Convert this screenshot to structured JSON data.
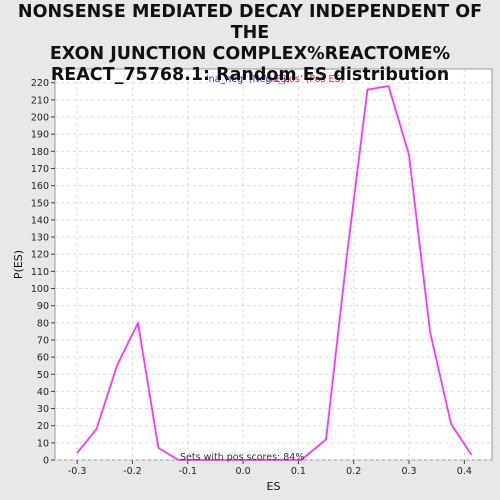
{
  "title": "NONSENSE MEDIATED DECAY INDEPENDENT OF THE EXON JUNCTION COMPLEX%REACTOME% REACT_75768.1: Random ES distribution",
  "chart_data": {
    "type": "line",
    "title": "NONSENSE MEDIATED DECAY INDEPENDENT OF THE EXON JUNCTION COMPLEX%REACTOME% REACT_75768.1: Random ES distribution",
    "xlabel": "ES",
    "ylabel": "P(ES)",
    "xlim": [
      -0.34,
      0.45
    ],
    "ylim": [
      0,
      228
    ],
    "x_ticks": [
      -0.3,
      -0.2,
      -0.1,
      0.0,
      0.1,
      0.2,
      0.3,
      0.4
    ],
    "x_tick_labels": [
      "-0.3",
      "-0.2",
      "-0.1",
      "0.0",
      "0.1",
      "0.2",
      "0.3",
      "0.4"
    ],
    "y_ticks": [
      0,
      10,
      20,
      30,
      40,
      50,
      60,
      70,
      80,
      90,
      100,
      110,
      120,
      130,
      140,
      150,
      160,
      170,
      180,
      190,
      200,
      210,
      220
    ],
    "y_tick_labels": [
      "0",
      "10",
      "20",
      "30",
      "40",
      "50",
      "60",
      "70",
      "80",
      "90",
      "100",
      "110",
      "120",
      "130",
      "140",
      "150",
      "160",
      "170",
      "180",
      "190",
      "200",
      "210",
      "220"
    ],
    "grid": true,
    "legend": [
      {
        "label": "'na_neg' (Neg ES)",
        "color": "#3333cc"
      },
      {
        "label": "'na_pos' (Pos ES)",
        "color": "#e03030"
      }
    ],
    "legend_placement": "top-center",
    "annotation": "Sets with pos scores: 84%",
    "series": [
      {
        "color": "#ff33ff",
        "x": [
          -0.3,
          -0.265,
          -0.228,
          -0.19,
          -0.153,
          -0.117,
          -0.08,
          -0.043,
          -0.006,
          0.031,
          0.068,
          0.105,
          0.15,
          0.188,
          0.225,
          0.263,
          0.3,
          0.338,
          0.376,
          0.413
        ],
        "y": [
          4,
          18,
          55,
          80,
          7,
          0,
          0,
          0,
          0,
          0,
          0,
          0,
          12,
          120,
          216,
          218,
          178,
          75,
          21,
          3
        ]
      }
    ]
  }
}
